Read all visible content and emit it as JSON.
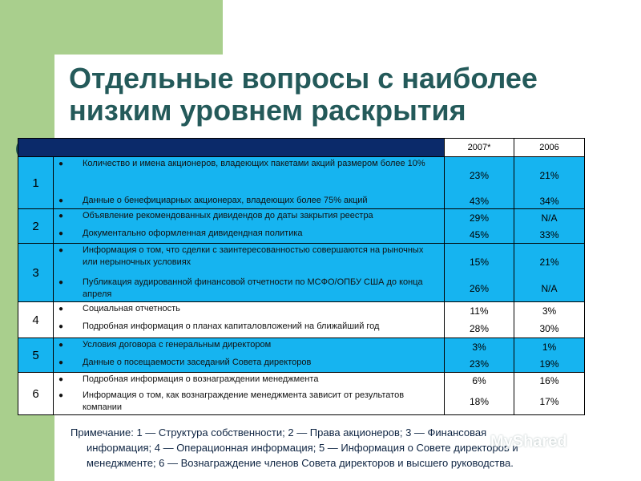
{
  "title": "Отдельные вопросы с наиболее низким уровнем раскрытия",
  "table": {
    "col_2007": "2007*",
    "col_2006": "2006",
    "groups": [
      {
        "num": "1",
        "items": [
          "Количество и имена акционеров, владеющих пакетами акций размером более 10%",
          "Данные о бенефициарных акционерах, владеющих более 75% акций"
        ],
        "v2007": [
          "23%",
          "43%"
        ],
        "v2006": [
          "21%",
          "34%"
        ]
      },
      {
        "num": "2",
        "items": [
          "Объявление рекомендованных дивидендов до даты закрытия реестра",
          "Документально оформленная дивидендная политика"
        ],
        "v2007": [
          "29%",
          "45%"
        ],
        "v2006": [
          "N/A",
          "33%"
        ]
      },
      {
        "num": "3",
        "items": [
          "Информация о том, что сделки с заинтересованностью совершаются на рыночных или нерыночных условиях",
          "Публикация аудированной финансовой отчетности по МСФО/ОПБУ США до конца апреля"
        ],
        "v2007": [
          "15%",
          "26%"
        ],
        "v2006": [
          "21%",
          "N/A"
        ]
      },
      {
        "num": "4",
        "items": [
          "Социальная отчетность",
          "Подробная информация о планах капиталовложений на ближайший год"
        ],
        "v2007": [
          "11%",
          "28%"
        ],
        "v2006": [
          "3%",
          "30%"
        ]
      },
      {
        "num": "5",
        "items": [
          "Условия договора с генеральным директором",
          "Данные о посещаемости заседаний Совета директоров"
        ],
        "v2007": [
          "3%",
          "23%"
        ],
        "v2006": [
          "1%",
          "19%"
        ]
      },
      {
        "num": "6",
        "items": [
          "Подробная информация о вознаграждении менеджмента",
          "Информация о том, как вознаграждение менеджмента зависит от результатов компании"
        ],
        "v2007": [
          "6%",
          "18%"
        ],
        "v2006": [
          "16%",
          "17%"
        ]
      }
    ]
  },
  "note": {
    "line1": "Примечание: 1 — Структура собственности; 2 — Права акционеров; 3 — Финансовая",
    "line2": "информация; 4 — Операционная информация; 5 — Информация о Совете директоров и",
    "line3": "менеджменте; 6 — Вознаграждение членов Совета директоров и высшего руководства."
  },
  "watermark": "MyShared"
}
